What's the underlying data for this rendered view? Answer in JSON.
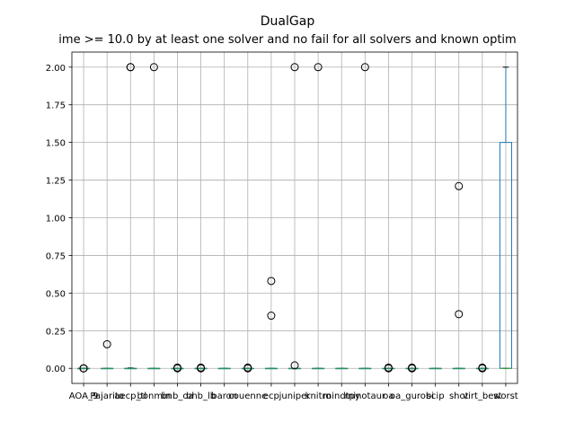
{
  "chart_data": {
    "type": "box",
    "title": "DualGap",
    "subtitle": "ime >= 10.0 by at least one solver and no fail for all solvers and known optim",
    "xlabel": "",
    "ylabel": "",
    "ylim": [
      -0.1,
      2.1
    ],
    "grid": true,
    "yticks": [
      0.0,
      0.25,
      0.5,
      0.75,
      1.0,
      1.25,
      1.5,
      1.75,
      2.0
    ],
    "ytick_labels": [
      "0.00",
      "0.25",
      "0.50",
      "0.75",
      "1.00",
      "1.25",
      "1.50",
      "1.75",
      "2.00"
    ],
    "categories": [
      "AOA_9",
      "Pajarito",
      "aecp_tl",
      "bonmin",
      "bnb_oa",
      "bhb_lb",
      "baron",
      "couenne",
      "ecp",
      "juniper",
      "knitro",
      "mindtpy",
      "minotaur",
      "oa",
      "oa_gurobi",
      "scip",
      "shot",
      "virt_best",
      "worst"
    ],
    "boxes": [
      {
        "q1": 0,
        "median": 0,
        "q3": 0,
        "whislo": 0,
        "whishi": 0,
        "fliers": [
          0,
          0,
          0
        ]
      },
      {
        "q1": 0,
        "median": 0,
        "q3": 0,
        "whislo": 0,
        "whishi": 0,
        "fliers": [
          0.16
        ]
      },
      {
        "q1": 0,
        "median": 0,
        "q3": 0,
        "whislo": 0,
        "whishi": 0.003,
        "fliers": [
          2.0,
          2.0
        ]
      },
      {
        "q1": 0,
        "median": 0,
        "q3": 0,
        "whislo": 0,
        "whishi": 0,
        "fliers": [
          2.0
        ]
      },
      {
        "q1": 0,
        "median": 0,
        "q3": 0,
        "whislo": 0,
        "whishi": 0,
        "fliers": [
          0,
          0.005
        ]
      },
      {
        "q1": 0,
        "median": 0,
        "q3": 0,
        "whislo": 0,
        "whishi": 0,
        "fliers": [
          0,
          0.005
        ]
      },
      {
        "q1": 0,
        "median": 0,
        "q3": 0,
        "whislo": 0,
        "whishi": 0,
        "fliers": []
      },
      {
        "q1": 0,
        "median": 0,
        "q3": 0,
        "whislo": 0,
        "whishi": 0,
        "fliers": [
          0,
          0.005
        ]
      },
      {
        "q1": 0,
        "median": 0,
        "q3": 0,
        "whislo": 0,
        "whishi": 0,
        "fliers": [
          0.35,
          0.58
        ]
      },
      {
        "q1": 0,
        "median": 0,
        "q3": 0,
        "whislo": 0,
        "whishi": 0,
        "fliers": [
          0.02,
          2.0
        ]
      },
      {
        "q1": 0,
        "median": 0,
        "q3": 0,
        "whislo": 0,
        "whishi": 0,
        "fliers": [
          2.0
        ]
      },
      {
        "q1": 0,
        "median": 0,
        "q3": 0,
        "whislo": 0,
        "whishi": 0,
        "fliers": []
      },
      {
        "q1": 0,
        "median": 0,
        "q3": 0,
        "whislo": 0,
        "whishi": 0,
        "fliers": [
          2.0
        ]
      },
      {
        "q1": 0,
        "median": 0,
        "q3": 0,
        "whislo": 0,
        "whishi": 0,
        "fliers": [
          0,
          0.005
        ]
      },
      {
        "q1": 0,
        "median": 0,
        "q3": 0,
        "whislo": 0,
        "whishi": 0,
        "fliers": [
          0,
          0.005
        ]
      },
      {
        "q1": 0,
        "median": 0,
        "q3": 0,
        "whislo": 0,
        "whishi": 0,
        "fliers": []
      },
      {
        "q1": 0,
        "median": 0,
        "q3": 0,
        "whislo": 0,
        "whishi": 0,
        "fliers": [
          0.36,
          1.21
        ]
      },
      {
        "q1": 0,
        "median": 0,
        "q3": 0,
        "whislo": 0,
        "whishi": 0,
        "fliers": [
          0,
          0.005
        ]
      },
      {
        "q1": 0,
        "median": 0,
        "q3": 1.5,
        "whislo": 0,
        "whishi": 2.0,
        "fliers": []
      }
    ],
    "box_color": "#1f77b4",
    "median_color": "#2ca02c",
    "grid_color": "#b0b0b0"
  }
}
